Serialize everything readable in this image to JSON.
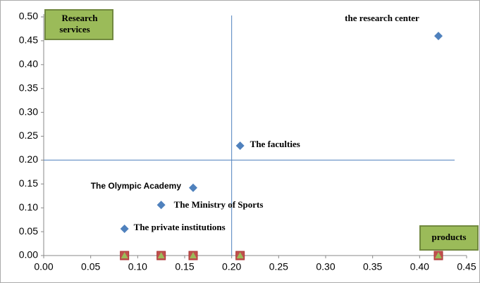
{
  "chart_data": {
    "type": "scatter",
    "xlim": [
      0,
      0.45
    ],
    "ylim": [
      0,
      0.5
    ],
    "xticks": [
      {
        "value": 0,
        "label": "0.00"
      },
      {
        "value": 0.05,
        "label": "0.05"
      },
      {
        "value": 0.1,
        "label": "0.10"
      },
      {
        "value": 0.15,
        "label": "0.15"
      },
      {
        "value": 0.2,
        "label": "0.20"
      },
      {
        "value": 0.25,
        "label": "0.25"
      },
      {
        "value": 0.3,
        "label": "0.30"
      },
      {
        "value": 0.35,
        "label": "0.35"
      },
      {
        "value": 0.4,
        "label": "0.40"
      },
      {
        "value": 0.45,
        "label": "0.45"
      }
    ],
    "yticks": [
      {
        "value": 0,
        "label": "0.00"
      },
      {
        "value": 0.05,
        "label": "0.05"
      },
      {
        "value": 0.1,
        "label": "0.10"
      },
      {
        "value": 0.15,
        "label": "0.15"
      },
      {
        "value": 0.2,
        "label": "0.20"
      },
      {
        "value": 0.25,
        "label": "0.25"
      },
      {
        "value": 0.3,
        "label": "0.30"
      },
      {
        "value": 0.35,
        "label": "0.35"
      },
      {
        "value": 0.4,
        "label": "0.40"
      },
      {
        "value": 0.45,
        "label": "0.45"
      },
      {
        "value": 0.5,
        "label": "0.50"
      }
    ],
    "series": [
      {
        "color": "#4f81bd",
        "marker": "diamond",
        "x": [
          0.42,
          0.209,
          0.159,
          0.125,
          0.086
        ],
        "values": [
          0.46,
          0.23,
          0.142,
          0.106,
          0.056
        ],
        "labels": [
          "the research center",
          "The faculties",
          "The Olympic Academy",
          "The Ministry of Sports",
          "The private institutions"
        ]
      },
      {
        "color": "#c0504d",
        "marker": "square",
        "x": [
          0.42,
          0.209,
          0.159,
          0.125,
          0.086
        ],
        "values": [
          0,
          0,
          0,
          0,
          0
        ]
      },
      {
        "color": "#9bbb59",
        "marker": "triangle",
        "x": [
          0.42,
          0.209,
          0.159,
          0.125,
          0.086
        ],
        "values": [
          0,
          0,
          0,
          0,
          0
        ]
      }
    ],
    "reference_lines": {
      "x": 0.2,
      "y": 0.2
    },
    "annotations": [
      "Research services",
      "products"
    ]
  }
}
